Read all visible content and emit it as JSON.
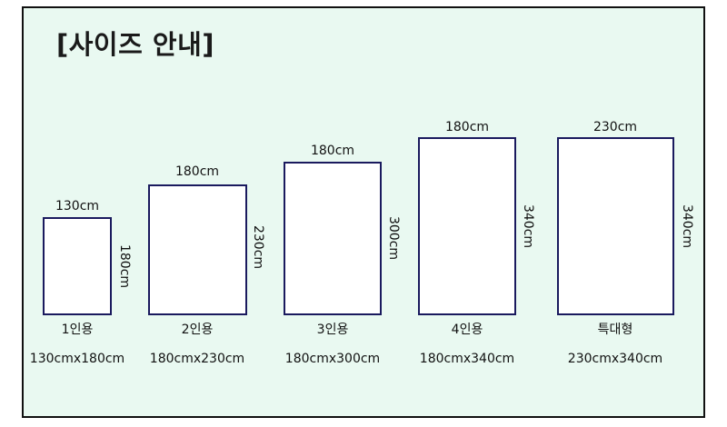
{
  "title": "[사이즈 안내]",
  "colors": {
    "background": "#e9f9f1",
    "box_border": "#1a1a5e",
    "box_fill": "#ffffff"
  },
  "sizes": [
    {
      "name": "1인용",
      "width_label": "130cm",
      "height_label": "180cm",
      "spec": "130cmx180cm"
    },
    {
      "name": "2인용",
      "width_label": "180cm",
      "height_label": "230cm",
      "spec": "180cmx230cm"
    },
    {
      "name": "3인용",
      "width_label": "180cm",
      "height_label": "300cm",
      "spec": "180cmx300cm"
    },
    {
      "name": "4인용",
      "width_label": "180cm",
      "height_label": "340cm",
      "spec": "180cmx340cm"
    },
    {
      "name": "특대형",
      "width_label": "230cm",
      "height_label": "340cm",
      "spec": "230cmx340cm"
    }
  ]
}
